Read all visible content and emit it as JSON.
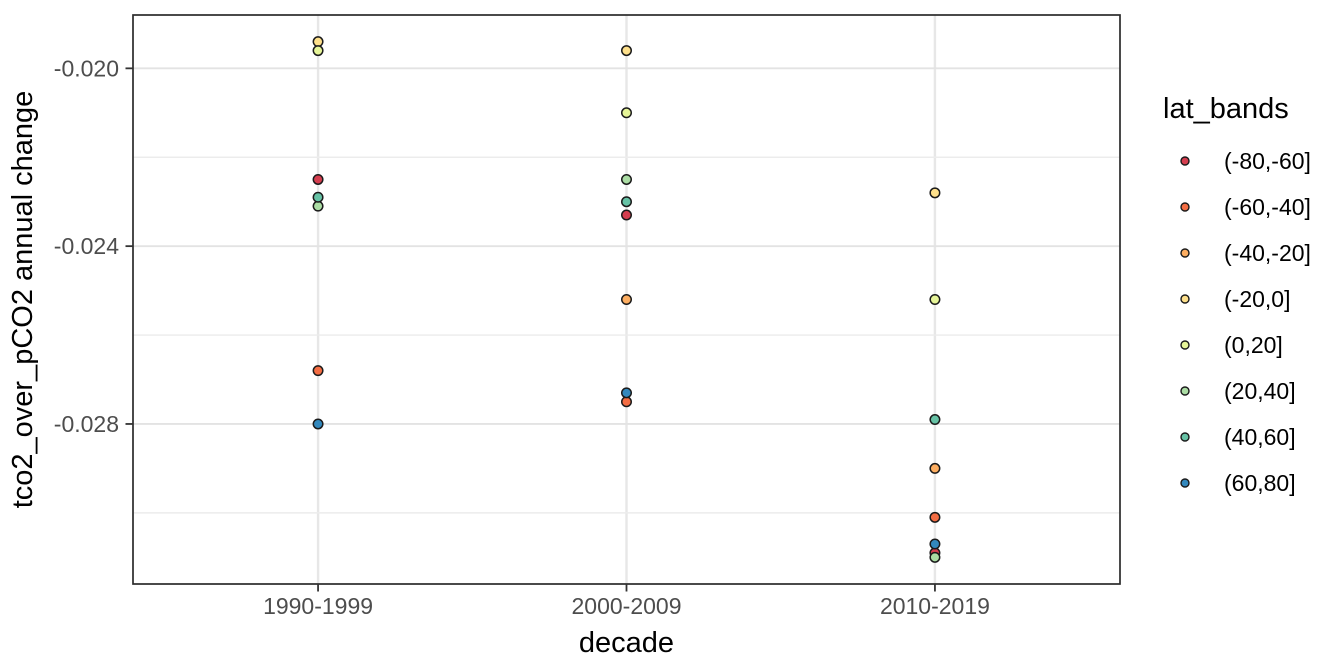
{
  "chart_data": {
    "type": "scatter",
    "title": "",
    "xlabel": "decade",
    "ylabel": "tco2_over_pCO2 annual change",
    "legend_title": "lat_bands",
    "legend_position": "right",
    "grid": true,
    "categories": [
      "1990-1999",
      "2000-2009",
      "2010-2019"
    ],
    "y_axis": {
      "ylim": [
        -0.0316,
        -0.0188
      ],
      "ticks": [
        {
          "value": -0.02,
          "label": "-0.020"
        },
        {
          "value": -0.024,
          "label": "-0.024"
        },
        {
          "value": -0.028,
          "label": "-0.028"
        }
      ],
      "minor_ticks": [
        -0.022,
        -0.026,
        -0.03
      ]
    },
    "series": [
      {
        "name": "(-80,-60]",
        "color": "#D53E4F",
        "values": [
          -0.0225,
          -0.0233,
          -0.0309
        ]
      },
      {
        "name": "(-60,-40]",
        "color": "#F46D43",
        "values": [
          -0.0268,
          -0.0275,
          -0.0301
        ]
      },
      {
        "name": "(-40,-20]",
        "color": "#FDAE61",
        "values": [
          null,
          -0.0252,
          -0.029
        ]
      },
      {
        "name": "(-20,0]",
        "color": "#FEE08B",
        "values": [
          -0.0194,
          -0.0196,
          -0.0228
        ]
      },
      {
        "name": "(0,20]",
        "color": "#E6F598",
        "values": [
          -0.0196,
          -0.021,
          -0.0252
        ]
      },
      {
        "name": "(20,40]",
        "color": "#ABDDA4",
        "values": [
          -0.0231,
          -0.0225,
          -0.031
        ]
      },
      {
        "name": "(40,60]",
        "color": "#66C2A5",
        "values": [
          -0.0229,
          -0.023,
          -0.0279
        ]
      },
      {
        "name": "(60,80]",
        "color": "#3288BD",
        "values": [
          -0.028,
          -0.0273,
          -0.0307
        ]
      }
    ],
    "style": {
      "point_stroke": "#1A1A1A",
      "panel_border": "#2B2B2B",
      "grid_major": "#E3E3E3",
      "grid_minor": "#ECECEC",
      "grid_vertical": "#E7E7E7",
      "tick_mark": "#333333",
      "tick_label_color": "#4D4D4D",
      "background": "#FFFFFF"
    }
  }
}
